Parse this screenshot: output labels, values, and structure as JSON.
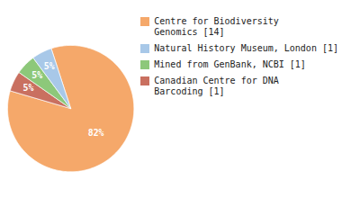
{
  "chart_data": {
    "type": "pie",
    "categories": [
      "Centre for Biodiversity\nGenomics [14]",
      "Natural History Museum, London [1]",
      "Mined from GenBank, NCBI [1]",
      "Canadian Centre for DNA\nBarcoding [1]"
    ],
    "values": [
      82,
      5,
      5,
      5
    ],
    "value_labels": [
      "82%",
      "5%",
      "5%",
      "5%"
    ],
    "colors": [
      "#F5A86A",
      "#A8C8E8",
      "#8DC87A",
      "#C97060"
    ],
    "data_labels": true,
    "legend": "upper right"
  }
}
